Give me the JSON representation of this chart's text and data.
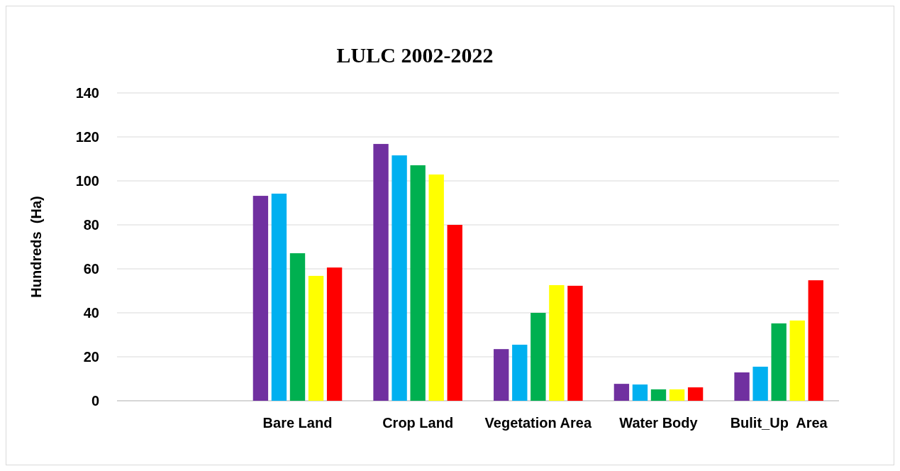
{
  "chart_data": {
    "type": "bar",
    "title": "LULC 2002-2022",
    "ylabel": "Hundreds  (Ha)",
    "categories": [
      null,
      "Bare Land",
      "Crop Land",
      "Vegetation Area",
      "Water Body",
      "Bulit_Up  Area"
    ],
    "series": [
      {
        "color": "#7030a0",
        "values": [
          null,
          93.2,
          116.8,
          23.5,
          7.7,
          12.9
        ]
      },
      {
        "color": "#00b0f0",
        "values": [
          null,
          94.2,
          111.6,
          25.5,
          7.4,
          15.5
        ]
      },
      {
        "color": "#00b050",
        "values": [
          null,
          67.1,
          107.1,
          40,
          5.2,
          35.2
        ]
      },
      {
        "color": "#ffff00",
        "values": [
          null,
          56.8,
          102.9,
          52.6,
          5.2,
          36.5
        ]
      },
      {
        "color": "#ff0000",
        "values": [
          null,
          60.6,
          80,
          52.3,
          6.1,
          54.8
        ]
      }
    ],
    "ylim": [
      0,
      140
    ],
    "yticks": [
      0,
      20,
      40,
      60,
      80,
      100,
      120,
      140
    ],
    "grid": "y"
  }
}
